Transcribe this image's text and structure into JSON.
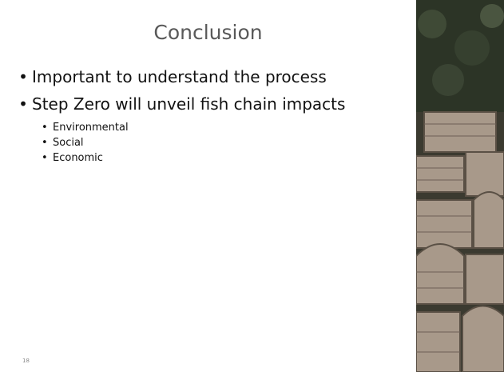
{
  "slide": {
    "title": "Conclusion",
    "bullets": [
      {
        "text": "Important to understand the process",
        "sub": []
      },
      {
        "text": "Step Zero will unveil fish chain impacts",
        "sub": [
          "Environmental",
          "Social",
          "Economic"
        ]
      }
    ],
    "slide_number": "18"
  }
}
